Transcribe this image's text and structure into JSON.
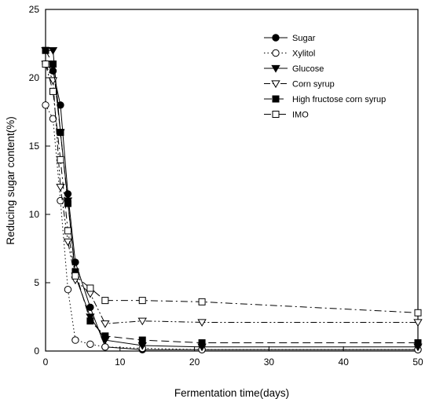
{
  "chart_data": {
    "type": "line",
    "title": "",
    "xlabel": "Fermentation time(days)",
    "ylabel": "Reducing sugar content(%)",
    "xlim": [
      0,
      50
    ],
    "ylim": [
      0,
      25
    ],
    "xticks": [
      0,
      10,
      20,
      30,
      40,
      50
    ],
    "yticks": [
      0,
      5,
      10,
      15,
      20,
      25
    ],
    "grid": false,
    "legend_position": "top-right",
    "series": [
      {
        "name": "Sugar",
        "marker": "filled-circle",
        "dash": "solid",
        "x": [
          0,
          1,
          2,
          3,
          4,
          6,
          8,
          13,
          21,
          50
        ],
        "y": [
          21.0,
          20.5,
          18.0,
          11.5,
          6.5,
          3.2,
          0.3,
          0.1,
          0.1,
          0.1
        ]
      },
      {
        "name": "Xylitol",
        "marker": "open-circle",
        "dash": "dotted",
        "x": [
          0,
          1,
          2,
          3,
          4,
          6,
          8,
          13,
          21,
          50
        ],
        "y": [
          18.0,
          17.0,
          11.0,
          4.5,
          0.8,
          0.5,
          0.3,
          0.2,
          0.1,
          0.1
        ]
      },
      {
        "name": "Glucose",
        "marker": "filled-triangle-down",
        "dash": "solid",
        "x": [
          0,
          1,
          2,
          3,
          4,
          6,
          8,
          13,
          21,
          50
        ],
        "y": [
          22.0,
          22.0,
          16.0,
          11.0,
          5.5,
          2.5,
          0.8,
          0.4,
          0.3,
          0.3
        ]
      },
      {
        "name": "Corn syrup",
        "marker": "open-triangle-down",
        "dash": "dash-dot-dot",
        "x": [
          0,
          1,
          2,
          3,
          4,
          6,
          8,
          13,
          21,
          50
        ],
        "y": [
          21.0,
          19.8,
          12.0,
          8.0,
          5.2,
          4.2,
          2.0,
          2.2,
          2.1,
          2.1
        ]
      },
      {
        "name": "High fructose corn syrup",
        "marker": "filled-square",
        "dash": "long-dash",
        "x": [
          0,
          1,
          2,
          3,
          4,
          6,
          8,
          13,
          21,
          50
        ],
        "y": [
          22.0,
          21.0,
          16.0,
          10.8,
          5.8,
          2.2,
          1.1,
          0.8,
          0.6,
          0.6
        ]
      },
      {
        "name": "IMO",
        "marker": "open-square",
        "dash": "dash-dot",
        "x": [
          0,
          1,
          2,
          3,
          4,
          6,
          8,
          13,
          21,
          50
        ],
        "y": [
          21.0,
          19.0,
          14.0,
          8.8,
          5.5,
          4.6,
          3.7,
          3.7,
          3.6,
          2.8
        ]
      }
    ]
  }
}
